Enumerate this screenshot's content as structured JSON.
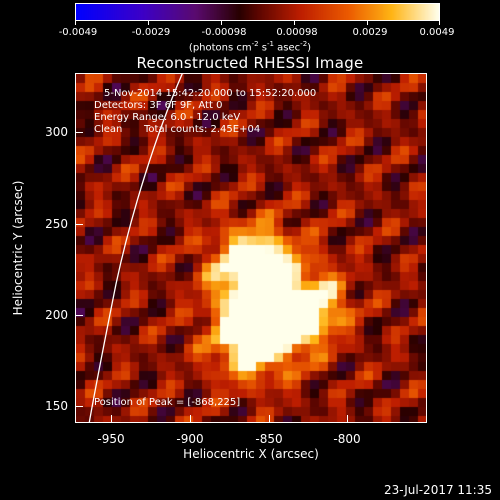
{
  "colorbar": {
    "ticks": [
      "-0.0049",
      "-0.0029",
      "-0.00098",
      "0.00098",
      "0.0029",
      "0.0049"
    ],
    "units_prefix": "(photons cm",
    "units_sup1": "-2",
    "units_mid": " s",
    "units_sup2": "-1",
    "units_mid2": " asec",
    "units_sup3": "-2",
    "units_suffix": ")"
  },
  "title": "Reconstructed RHESSI Image",
  "info": {
    "time_range": "5-Nov-2014 15:42:20.000 to 15:52:20.000",
    "detectors": "Detectors: 3F 6F 9F, Att 0",
    "energy_range": "Energy Range: 6.0 - 12.0 keV",
    "clean": "Clean",
    "total_counts": "Total counts: 2.45E+04",
    "peak": "Position of Peak = [-868,225]"
  },
  "axes": {
    "xlabel": "Heliocentric X (arcsec)",
    "ylabel": "Heliocentric Y (arcsec)",
    "xticks": [
      "-950",
      "-900",
      "-850",
      "-800"
    ],
    "yticks": [
      "150",
      "200",
      "250",
      "300"
    ]
  },
  "footer": {
    "date": "23-Jul-2017 11:35"
  },
  "colors": {
    "background": "#000000",
    "axes": "#ffffff"
  }
}
